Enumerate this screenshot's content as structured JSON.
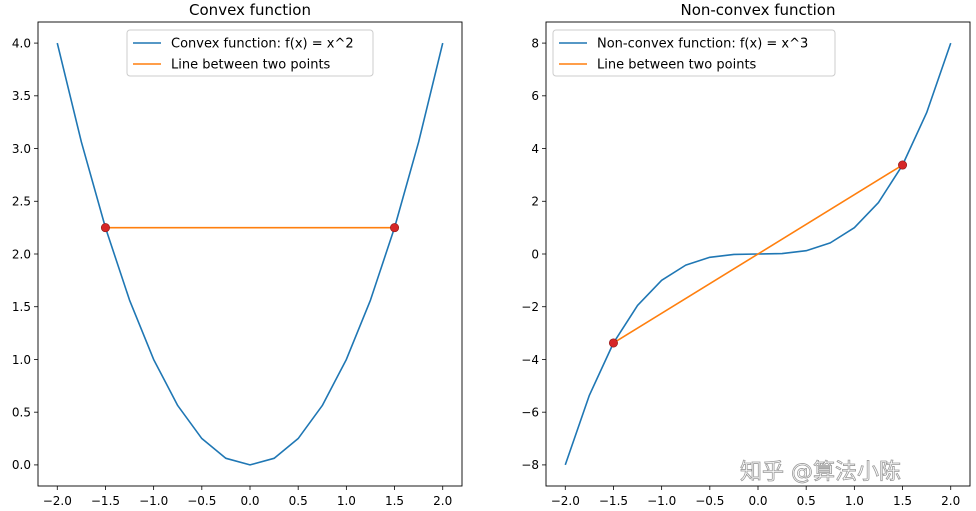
{
  "chart_data": [
    {
      "type": "line",
      "title": "Convex function",
      "xlim": [
        -2.2,
        2.2
      ],
      "ylim": [
        -0.2,
        4.2
      ],
      "xticks": [
        -2.0,
        -1.5,
        -1.0,
        -0.5,
        0.0,
        0.5,
        1.0,
        1.5,
        2.0
      ],
      "xtick_labels": [
        "−2.0",
        "−1.5",
        "−1.0",
        "−0.5",
        "0.0",
        "0.5",
        "1.0",
        "1.5",
        "2.0"
      ],
      "yticks": [
        0.0,
        0.5,
        1.0,
        1.5,
        2.0,
        2.5,
        3.0,
        3.5,
        4.0
      ],
      "ytick_labels": [
        "0.0",
        "0.5",
        "1.0",
        "1.5",
        "2.0",
        "2.5",
        "3.0",
        "3.5",
        "4.0"
      ],
      "legend_position": "top-center",
      "series": [
        {
          "name": "Convex function: f(x) = x^2",
          "color": "#1f77b4",
          "x": [
            -2.0,
            -1.75,
            -1.5,
            -1.25,
            -1.0,
            -0.75,
            -0.5,
            -0.25,
            0.0,
            0.25,
            0.5,
            0.75,
            1.0,
            1.25,
            1.5,
            1.75,
            2.0
          ],
          "y": [
            4.0,
            3.0625,
            2.25,
            1.5625,
            1.0,
            0.5625,
            0.25,
            0.0625,
            0.0,
            0.0625,
            0.25,
            0.5625,
            1.0,
            1.5625,
            2.25,
            3.0625,
            4.0
          ]
        },
        {
          "name": "Line between two points",
          "color": "#ff7f0e",
          "x": [
            -1.5,
            1.5
          ],
          "y": [
            2.25,
            2.25
          ]
        }
      ],
      "points": {
        "color": "#d62728",
        "x": [
          -1.5,
          1.5
        ],
        "y": [
          2.25,
          2.25
        ]
      }
    },
    {
      "type": "line",
      "title": "Non-convex function",
      "xlim": [
        -2.2,
        2.2
      ],
      "ylim": [
        -8.8,
        8.8
      ],
      "xticks": [
        -2.0,
        -1.5,
        -1.0,
        -0.5,
        0.0,
        0.5,
        1.0,
        1.5,
        2.0
      ],
      "xtick_labels": [
        "−2.0",
        "−1.5",
        "−1.0",
        "−0.5",
        "0.0",
        "0.5",
        "1.0",
        "1.5",
        "2.0"
      ],
      "yticks": [
        -8,
        -6,
        -4,
        -2,
        0,
        2,
        4,
        6,
        8
      ],
      "ytick_labels": [
        "−8",
        "−6",
        "−4",
        "−2",
        "0",
        "2",
        "4",
        "6",
        "8"
      ],
      "legend_position": "top-left",
      "series": [
        {
          "name": "Non-convex function: f(x) = x^3",
          "color": "#1f77b4",
          "x": [
            -2.0,
            -1.75,
            -1.5,
            -1.25,
            -1.0,
            -0.75,
            -0.5,
            -0.25,
            0.0,
            0.25,
            0.5,
            0.75,
            1.0,
            1.25,
            1.5,
            1.75,
            2.0
          ],
          "y": [
            -8.0,
            -5.359,
            -3.375,
            -1.953,
            -1.0,
            -0.422,
            -0.125,
            -0.016,
            0.0,
            0.016,
            0.125,
            0.422,
            1.0,
            1.953,
            3.375,
            5.359,
            8.0
          ]
        },
        {
          "name": "Line between two points",
          "color": "#ff7f0e",
          "x": [
            -1.5,
            1.5
          ],
          "y": [
            -3.375,
            3.375
          ]
        }
      ],
      "points": {
        "color": "#d62728",
        "x": [
          -1.5,
          1.5
        ],
        "y": [
          -3.375,
          3.375
        ]
      }
    }
  ],
  "watermark": "知乎 @算法小陈"
}
